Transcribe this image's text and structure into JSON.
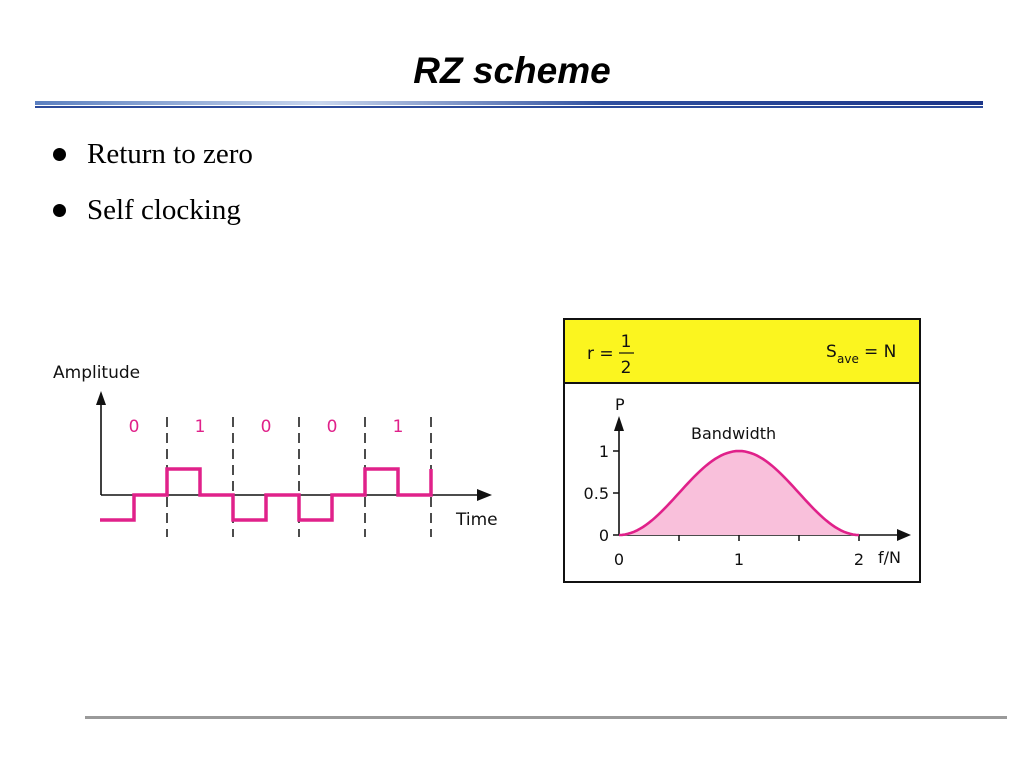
{
  "slide": {
    "title": "RZ scheme",
    "bullets": [
      "Return to zero",
      "Self clocking"
    ]
  },
  "waveform": {
    "y_axis_label": "Amplitude",
    "x_axis_label": "Time",
    "bits": [
      "0",
      "1",
      "0",
      "0",
      "1"
    ],
    "signal_color": "#e0218a"
  },
  "spectrum": {
    "header": {
      "r_label": "r =",
      "r_numerator": "1",
      "r_denominator": "2",
      "s_symbol": "S",
      "s_subscript": "ave",
      "s_value": "= N",
      "background": "#fbf51f"
    },
    "chart_data": {
      "type": "area",
      "y_axis_label": "P",
      "x_axis_label": "f/N",
      "annotation": "Bandwidth",
      "xlim": [
        0,
        2
      ],
      "ylim": [
        0,
        1
      ],
      "x_ticks": [
        "0",
        "1",
        "2"
      ],
      "y_ticks": [
        "0",
        "0.5",
        "1"
      ],
      "x": [
        0,
        0.25,
        0.5,
        0.75,
        1,
        1.25,
        1.5,
        1.75,
        2
      ],
      "y": [
        0,
        0.15,
        0.5,
        0.85,
        1,
        0.85,
        0.5,
        0.15,
        0
      ],
      "line_color": "#e0218a",
      "fill_color": "#f9c0db"
    }
  }
}
